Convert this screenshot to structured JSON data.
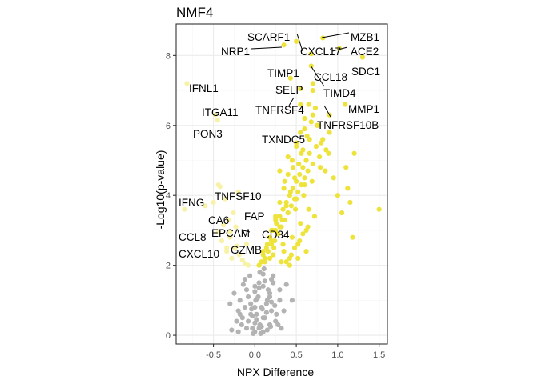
{
  "chart_data": {
    "type": "scatter",
    "title": "NMF4",
    "xlabel": "NPX Difference",
    "ylabel": "-Log10(p-value)",
    "xlim": [
      -0.95,
      1.6
    ],
    "ylim": [
      -0.25,
      8.9
    ],
    "x_ticks": [
      -0.5,
      0.0,
      0.5,
      1.0,
      1.5
    ],
    "x_tick_labels": [
      "-0.5",
      "0.0",
      "0.5",
      "1.0",
      "1.5"
    ],
    "y_ticks": [
      0,
      2,
      4,
      6,
      8
    ],
    "y_tick_labels": [
      "0",
      "2",
      "4",
      "6",
      "8"
    ],
    "grid": true,
    "legend": "none",
    "colors": {
      "significant_up": "#ede33a",
      "significant_down": "#f7f2a6",
      "not_significant": "#b3b3b3",
      "panel_border": "#333333",
      "grid_major": "#ebebeb",
      "grid_minor": "#f5f5f5"
    },
    "highlighted_points": [
      {
        "label": "MZB1",
        "x": 0.82,
        "y": 8.5
      },
      {
        "label": "SCARF1",
        "x": 0.5,
        "y": 8.4
      },
      {
        "label": "NRP1",
        "x": 0.35,
        "y": 8.3
      },
      {
        "label": "CXCL17",
        "x": 0.68,
        "y": 8.05
      },
      {
        "label": "ACE2",
        "x": 1.02,
        "y": 8.2
      },
      {
        "label": "SDC1",
        "x": 1.3,
        "y": 7.95
      },
      {
        "label": "TIMP1",
        "x": 0.43,
        "y": 7.35
      },
      {
        "label": "CCL18",
        "x": 0.68,
        "y": 7.7
      },
      {
        "label": "SELP",
        "x": 0.55,
        "y": 7.05
      },
      {
        "label": "TIMD4",
        "x": 0.7,
        "y": 7.2
      },
      {
        "label": "IFNL1",
        "x": -0.82,
        "y": 7.2
      },
      {
        "label": "MMP1",
        "x": 1.09,
        "y": 6.6
      },
      {
        "label": "ITGA11",
        "x": -0.48,
        "y": 6.3
      },
      {
        "label": "TNFRSF4",
        "x": 0.55,
        "y": 6.6
      },
      {
        "label": "TNFRSF10B",
        "x": 0.9,
        "y": 6.3
      },
      {
        "label": "PON3",
        "x": -0.45,
        "y": 6.15
      },
      {
        "label": "TXNDC5",
        "x": 0.55,
        "y": 5.8
      },
      {
        "label": "IFNG",
        "x": -0.85,
        "y": 3.6
      },
      {
        "label": "TNFSF10",
        "x": -0.42,
        "y": 4.25
      },
      {
        "label": "CA6",
        "x": -0.38,
        "y": 3.15
      },
      {
        "label": "FAP",
        "x": 0.25,
        "y": 3.3
      },
      {
        "label": "CCL8",
        "x": -0.44,
        "y": 2.95
      },
      {
        "label": "EPCAM",
        "x": -0.3,
        "y": 2.95
      },
      {
        "label": "CD34",
        "x": 0.25,
        "y": 3.0
      },
      {
        "label": "GZMB",
        "x": -0.22,
        "y": 2.55
      },
      {
        "label": "CXCL10",
        "x": -0.34,
        "y": 2.5
      }
    ],
    "series": [
      {
        "name": "",
        "color_key": "not_significant",
        "x": [
          -0.3,
          -0.25,
          -0.2,
          -0.18,
          -0.15,
          -0.12,
          -0.1,
          -0.08,
          -0.05,
          -0.03,
          0.0,
          0.02,
          0.04,
          0.06,
          0.08,
          0.1,
          0.12,
          0.15,
          0.18,
          0.2,
          -0.22,
          -0.16,
          -0.1,
          -0.05,
          0.0,
          0.05,
          0.1,
          0.14,
          0.18,
          0.22,
          0.26,
          0.3,
          -0.12,
          -0.06,
          0.0,
          0.06,
          0.12,
          0.18,
          0.24,
          -0.28,
          -0.2,
          0.0,
          0.05,
          0.1,
          0.15,
          0.2,
          0.25,
          0.3,
          0.35,
          -0.02,
          0.02,
          0.08,
          0.14,
          0.2,
          0.28,
          -0.08,
          0.0,
          0.05,
          0.1,
          -0.14,
          -0.03,
          0.03,
          0.09,
          0.16,
          0.22,
          0.32,
          0.38,
          0.45,
          -0.18,
          0.11,
          0.01,
          -0.04,
          0.07,
          0.19
        ],
        "y": [
          0.9,
          1.2,
          0.7,
          1.0,
          0.5,
          0.8,
          1.3,
          0.4,
          0.9,
          0.2,
          0.1,
          0.6,
          1.1,
          0.3,
          0.8,
          1.4,
          0.5,
          1.0,
          1.2,
          0.7,
          0.4,
          0.3,
          0.2,
          0.6,
          0.35,
          0.2,
          0.5,
          0.9,
          1.1,
          1.5,
          0.6,
          1.3,
          1.6,
          1.7,
          1.4,
          1.8,
          1.55,
          0.3,
          0.85,
          0.15,
          0.1,
          0.8,
          1.5,
          1.75,
          0.15,
          1.6,
          0.4,
          1.0,
          0.7,
          0.05,
          0.45,
          0.25,
          0.65,
          0.95,
          0.3,
          1.1,
          1.25,
          1.35,
          0.1,
          1.45,
          0.55,
          1.05,
          0.75,
          1.3,
          1.7,
          0.2,
          1.45,
          1.0,
          0.6,
          1.9,
          1.0,
          0.75,
          0.05,
          0.25
        ]
      },
      {
        "name": "",
        "color_key": "significant_down",
        "x": [
          -0.28,
          -0.34,
          -0.4,
          -0.23,
          -0.19,
          -0.15,
          -0.3,
          -0.26,
          -0.36,
          -0.12,
          -0.08,
          -0.2,
          -0.44,
          -0.5,
          -0.6,
          -0.1,
          -0.32,
          -0.24
        ],
        "y": [
          2.2,
          2.4,
          2.7,
          3.1,
          2.3,
          2.15,
          2.8,
          3.5,
          3.9,
          2.05,
          2.0,
          4.1,
          4.3,
          3.8,
          3.7,
          2.6,
          3.3,
          2.5
        ]
      },
      {
        "name": "",
        "color_key": "significant_up",
        "x": [
          0.05,
          0.08,
          0.1,
          0.12,
          0.14,
          0.16,
          0.18,
          0.2,
          0.22,
          0.24,
          0.26,
          0.28,
          0.3,
          0.32,
          0.34,
          0.36,
          0.38,
          0.4,
          0.42,
          0.44,
          0.46,
          0.48,
          0.5,
          0.52,
          0.54,
          0.56,
          0.58,
          0.6,
          0.62,
          0.64,
          0.66,
          0.7,
          0.74,
          0.78,
          0.82,
          0.86,
          0.9,
          0.95,
          1.0,
          1.05,
          1.1,
          1.15,
          1.2,
          1.5,
          1.18,
          1.12,
          0.15,
          0.2,
          0.25,
          0.3,
          0.35,
          0.4,
          0.45,
          0.5,
          0.55,
          0.6,
          0.65,
          0.7,
          0.75,
          0.8,
          0.85,
          0.18,
          0.23,
          0.28,
          0.33,
          0.38,
          0.43,
          0.48,
          0.53,
          0.58,
          0.63,
          0.68,
          0.73,
          0.1,
          0.2,
          0.3,
          0.4,
          0.5,
          0.6,
          0.35,
          0.45,
          0.55,
          0.65,
          0.42,
          0.52,
          0.62,
          0.72,
          0.3,
          0.4,
          0.5,
          0.6,
          0.7,
          0.38,
          0.48,
          0.58,
          0.44,
          0.54,
          0.64,
          0.36,
          0.46,
          0.56,
          0.66,
          0.76,
          0.34,
          0.49,
          0.59,
          0.69,
          0.79,
          0.89,
          0.12,
          0.22,
          0.32,
          0.42,
          0.52,
          0.62
        ],
        "y": [
          2.0,
          2.1,
          2.3,
          2.2,
          2.5,
          2.4,
          2.8,
          2.6,
          3.0,
          2.7,
          3.2,
          2.9,
          3.4,
          3.1,
          3.6,
          3.3,
          3.8,
          3.5,
          4.0,
          3.7,
          4.2,
          3.9,
          4.4,
          4.1,
          4.6,
          4.3,
          4.8,
          4.5,
          5.0,
          4.7,
          5.2,
          4.9,
          5.4,
          5.1,
          5.6,
          5.3,
          5.8,
          4.5,
          4.0,
          3.5,
          4.8,
          3.8,
          5.2,
          3.6,
          2.8,
          4.2,
          2.6,
          3.0,
          3.4,
          3.8,
          4.2,
          4.6,
          5.0,
          5.4,
          5.8,
          6.2,
          6.6,
          7.0,
          6.0,
          5.5,
          4.7,
          2.2,
          2.5,
          2.9,
          3.3,
          3.7,
          4.1,
          4.5,
          4.9,
          5.3,
          5.7,
          6.1,
          6.5,
          2.4,
          2.7,
          3.1,
          3.5,
          3.9,
          4.3,
          2.4,
          2.8,
          3.2,
          3.6,
          2.2,
          2.6,
          3.0,
          3.4,
          4.7,
          5.1,
          5.5,
          5.9,
          6.3,
          2.1,
          2.5,
          2.9,
          2.3,
          2.7,
          3.1,
          4.4,
          4.8,
          5.2,
          5.6,
          6.0,
          2.6,
          3.6,
          4.0,
          4.4,
          4.8,
          5.2,
          2.1,
          2.3,
          2.1,
          2.0,
          2.2,
          2.4
        ]
      }
    ]
  }
}
